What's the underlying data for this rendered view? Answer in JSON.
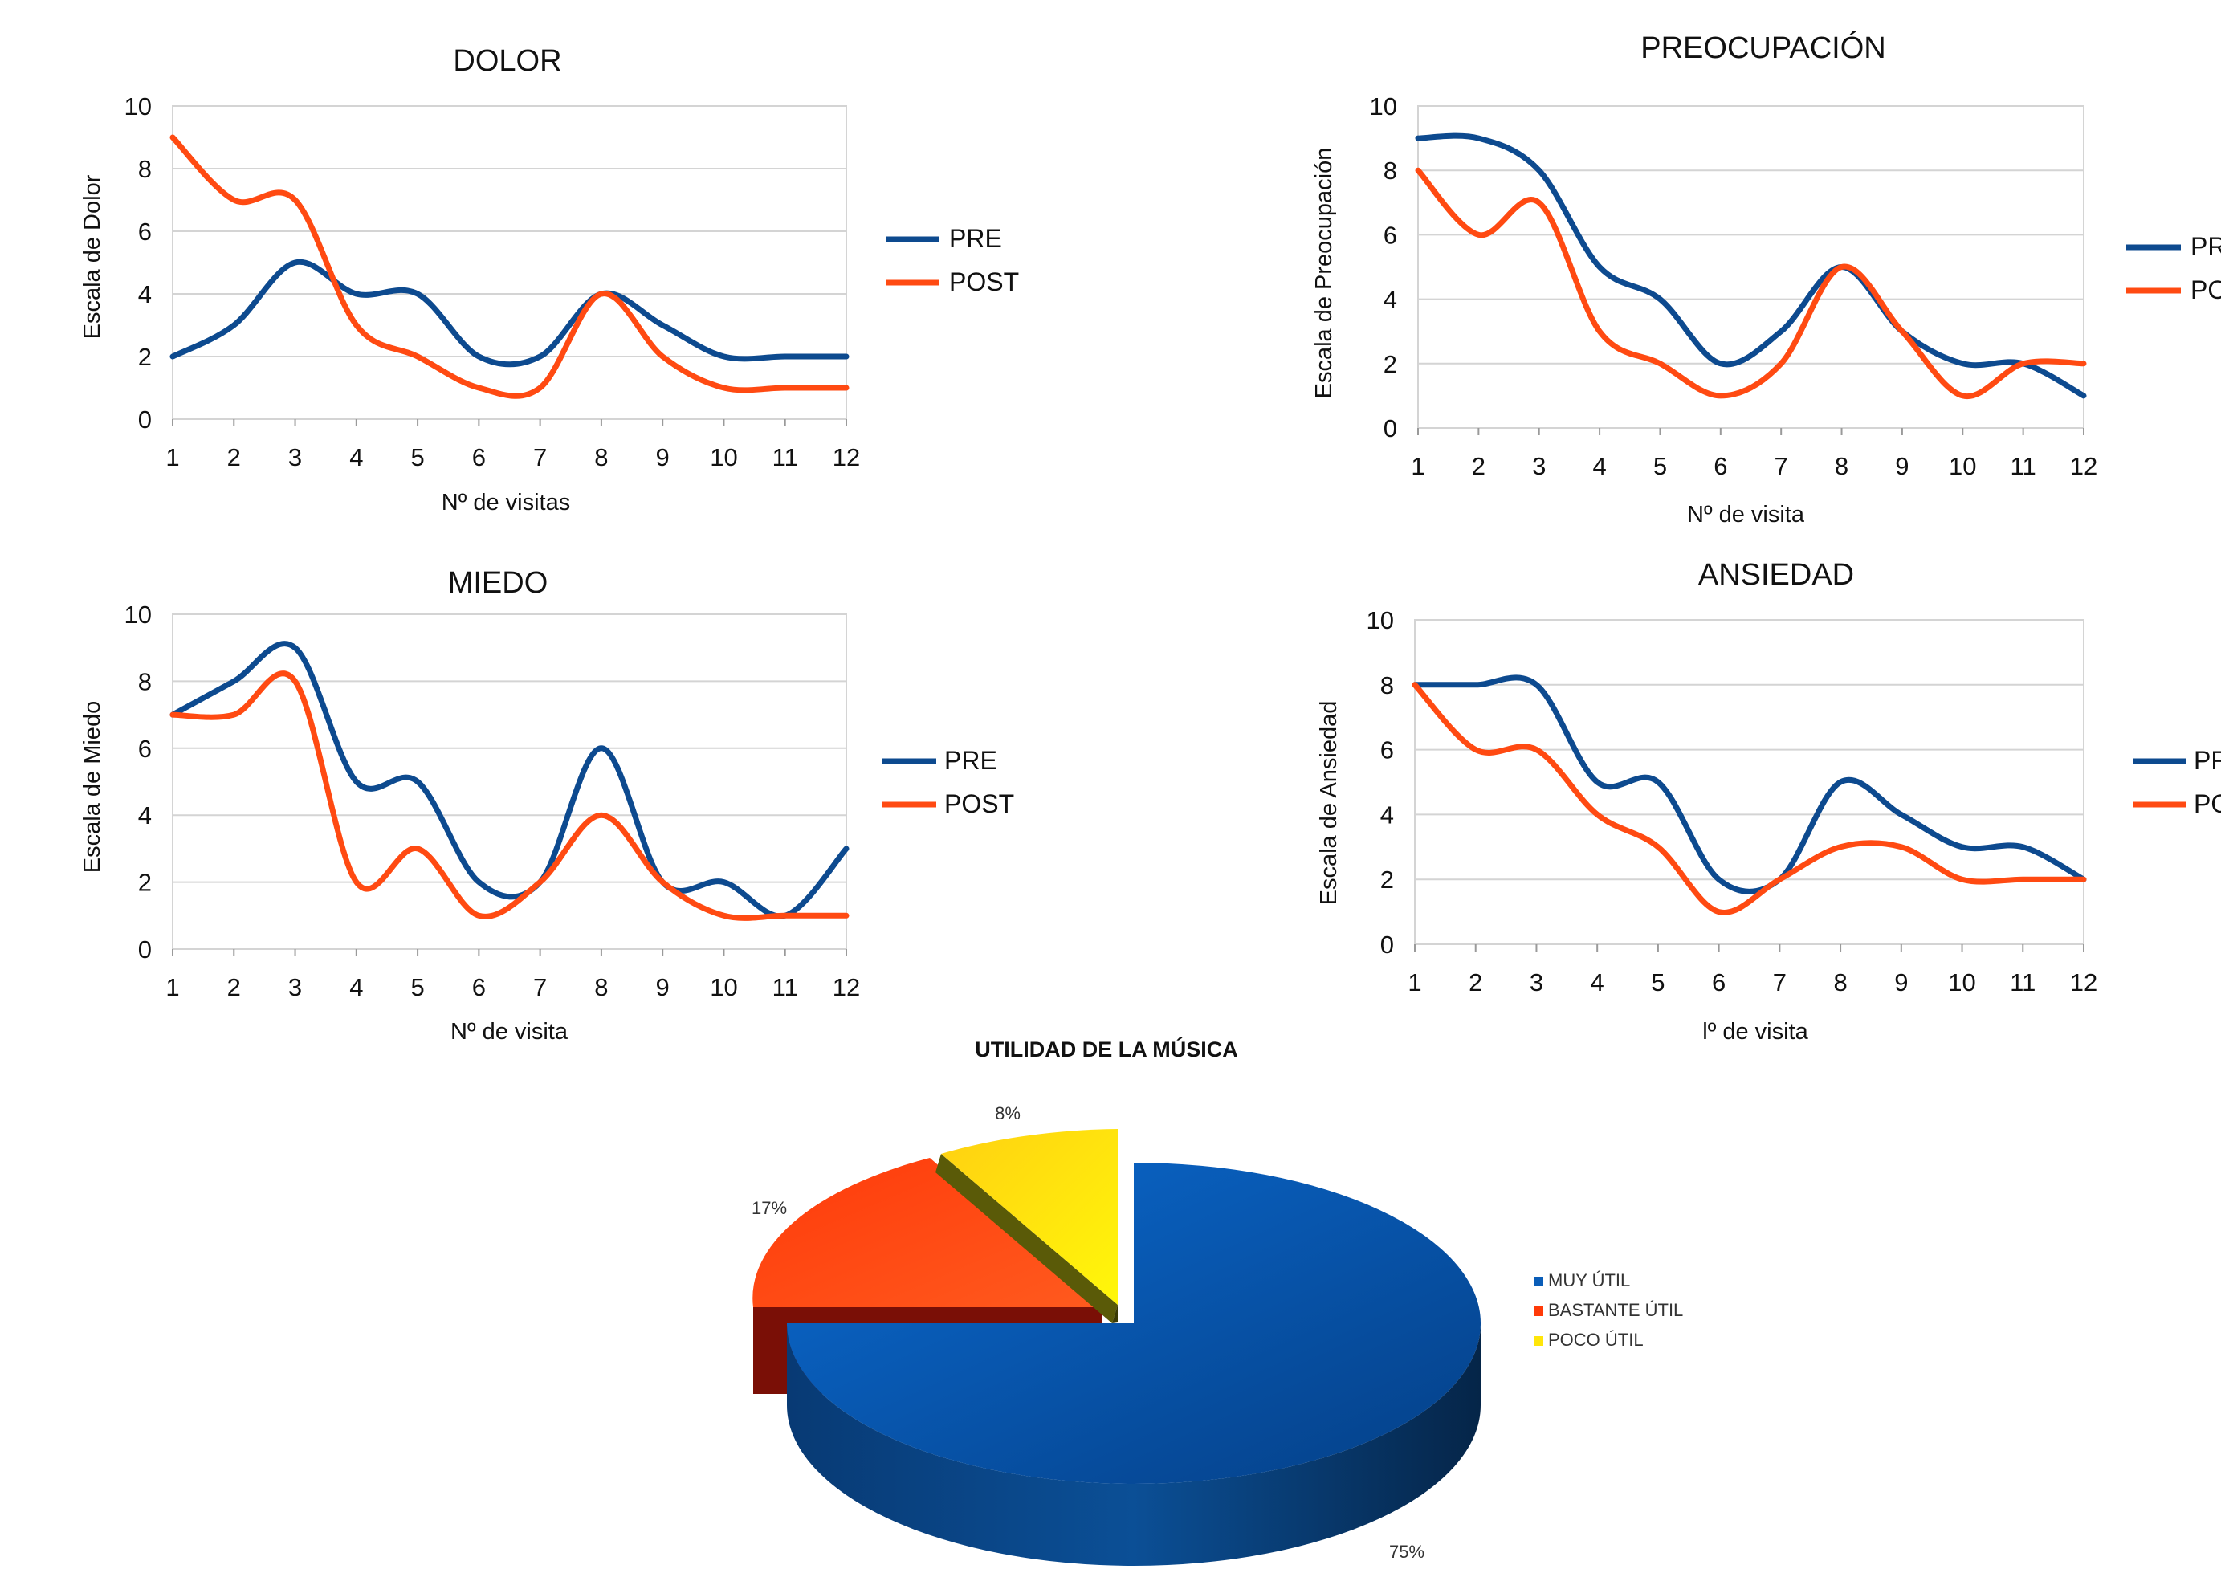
{
  "colors": {
    "pre": "#0d4a8f",
    "post": "#ff4a12",
    "grid": "#d4d4d4",
    "axis": "#9a9a9a",
    "text": "#111111"
  },
  "chart_data": [
    {
      "type": "line",
      "title": "DOLOR",
      "xlabel": "Nº de visitas",
      "ylabel": "Escala de Dolor",
      "x": [
        1,
        2,
        3,
        4,
        5,
        6,
        7,
        8,
        9,
        10,
        11,
        12
      ],
      "ylim": [
        0,
        10
      ],
      "yticks": [
        0,
        2,
        4,
        6,
        8,
        10
      ],
      "grid": true,
      "legend_position": "right",
      "series": [
        {
          "name": "PRE",
          "color": "#0d4a8f",
          "values": [
            2,
            3,
            5,
            4,
            4,
            2,
            2,
            4,
            3,
            2,
            2,
            2
          ]
        },
        {
          "name": "POST",
          "color": "#ff4a12",
          "values": [
            9,
            7,
            7,
            3,
            2,
            1,
            1,
            4,
            2,
            1,
            1,
            1
          ]
        }
      ]
    },
    {
      "type": "line",
      "title": "PREOCUPACIÓN",
      "xlabel": "Nº de visita",
      "ylabel": "Escala de Preocupación",
      "x": [
        1,
        2,
        3,
        4,
        5,
        6,
        7,
        8,
        9,
        10,
        11,
        12
      ],
      "ylim": [
        0,
        10
      ],
      "yticks": [
        0,
        2,
        4,
        6,
        8,
        10
      ],
      "grid": true,
      "legend_position": "right",
      "series": [
        {
          "name": "PRE",
          "color": "#0d4a8f",
          "values": [
            9,
            9,
            8,
            5,
            4,
            2,
            3,
            5,
            3,
            2,
            2,
            1
          ]
        },
        {
          "name": "POST",
          "color": "#ff4a12",
          "values": [
            8,
            6,
            7,
            3,
            2,
            1,
            2,
            5,
            3,
            1,
            2,
            2
          ]
        }
      ]
    },
    {
      "type": "line",
      "title": "MIEDO",
      "xlabel": "Nº de visita",
      "ylabel": "Escala de Miedo",
      "x": [
        1,
        2,
        3,
        4,
        5,
        6,
        7,
        8,
        9,
        10,
        11,
        12
      ],
      "ylim": [
        0,
        10
      ],
      "yticks": [
        0,
        2,
        4,
        6,
        8,
        10
      ],
      "grid": true,
      "legend_position": "right",
      "series": [
        {
          "name": "PRE",
          "color": "#0d4a8f",
          "values": [
            7,
            8,
            9,
            5,
            5,
            2,
            2,
            6,
            2,
            2,
            1,
            3
          ]
        },
        {
          "name": "POST",
          "color": "#ff4a12",
          "values": [
            7,
            7,
            8,
            2,
            3,
            1,
            2,
            4,
            2,
            1,
            1,
            1
          ]
        }
      ]
    },
    {
      "type": "line",
      "title": "ANSIEDAD",
      "xlabel": "lº de visita",
      "ylabel": "Escala de Ansiedad",
      "x": [
        1,
        2,
        3,
        4,
        5,
        6,
        7,
        8,
        9,
        10,
        11,
        12
      ],
      "ylim": [
        0,
        10
      ],
      "yticks": [
        0,
        2,
        4,
        6,
        8,
        10
      ],
      "grid": true,
      "legend_position": "right",
      "series": [
        {
          "name": "PRE",
          "color": "#0d4a8f",
          "values": [
            8,
            8,
            8,
            5,
            5,
            2,
            2,
            5,
            4,
            3,
            3,
            2
          ]
        },
        {
          "name": "POST",
          "color": "#ff4a12",
          "values": [
            8,
            6,
            6,
            4,
            3,
            1,
            2,
            3,
            3,
            2,
            2,
            2
          ]
        }
      ]
    },
    {
      "type": "pie",
      "title": "UTILIDAD DE LA MÚSICA",
      "categories": [
        "MUY ÚTIL",
        "BASTANTE ÚTIL",
        "POCO ÚTIL"
      ],
      "values": [
        75,
        17,
        8
      ],
      "labels": [
        "75%",
        "17%",
        "8%"
      ],
      "colors": [
        "#0a5db8",
        "#ff3a08",
        "#ffe60a"
      ],
      "legend_position": "right"
    }
  ]
}
